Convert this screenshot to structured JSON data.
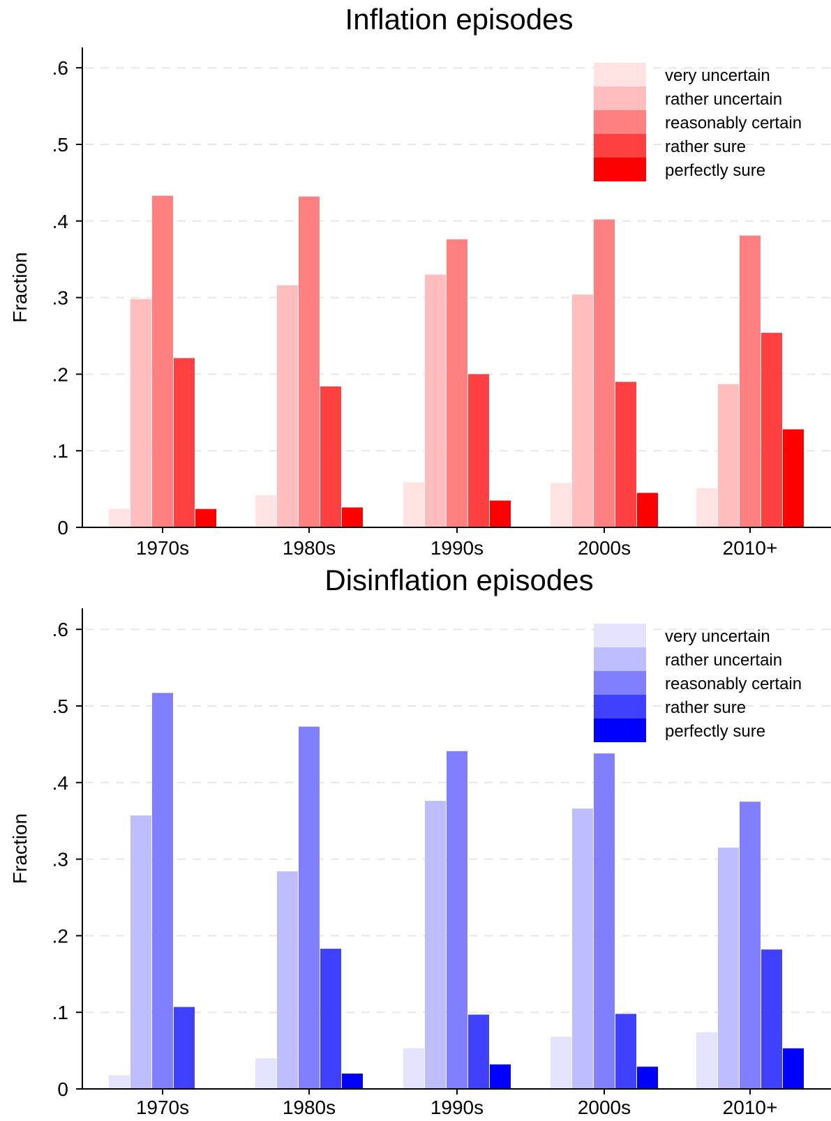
{
  "chart_data": [
    {
      "type": "bar",
      "title": "Inflation episodes",
      "ylabel": "Fraction",
      "xlabel": "",
      "categories": [
        "1970s",
        "1980s",
        "1990s",
        "2000s",
        "2010+"
      ],
      "ylim": [
        0,
        0.6
      ],
      "yticks": [
        0,
        0.1,
        0.2,
        0.3,
        0.4,
        0.5,
        0.6
      ],
      "ytick_labels": [
        "0",
        ".1",
        ".2",
        ".3",
        ".4",
        ".5",
        ".6"
      ],
      "grid": true,
      "legend_position": "top-right",
      "series": [
        {
          "name": "very uncertain",
          "color": "#FFE3E3",
          "values": [
            0.024,
            0.042,
            0.059,
            0.058,
            0.051
          ]
        },
        {
          "name": "rather uncertain",
          "color": "#FFBDBD",
          "values": [
            0.298,
            0.316,
            0.33,
            0.304,
            0.187
          ]
        },
        {
          "name": "reasonably certain",
          "color": "#FF8080",
          "values": [
            0.433,
            0.432,
            0.376,
            0.402,
            0.381
          ]
        },
        {
          "name": "rather sure",
          "color": "#FF4040",
          "values": [
            0.221,
            0.184,
            0.2,
            0.19,
            0.254
          ]
        },
        {
          "name": "perfectly sure",
          "color": "#FF0000",
          "values": [
            0.024,
            0.026,
            0.035,
            0.045,
            0.128
          ]
        }
      ]
    },
    {
      "type": "bar",
      "title": "Disinflation episodes",
      "ylabel": "Fraction",
      "xlabel": "",
      "categories": [
        "1970s",
        "1980s",
        "1990s",
        "2000s",
        "2010+"
      ],
      "ylim": [
        0,
        0.6
      ],
      "yticks": [
        0,
        0.1,
        0.2,
        0.3,
        0.4,
        0.5,
        0.6
      ],
      "ytick_labels": [
        "0",
        ".1",
        ".2",
        ".3",
        ".4",
        ".5",
        ".6"
      ],
      "grid": true,
      "legend_position": "top-right",
      "series": [
        {
          "name": "very uncertain",
          "color": "#E3E3FF",
          "values": [
            0.018,
            0.04,
            0.053,
            0.068,
            0.074
          ]
        },
        {
          "name": "rather uncertain",
          "color": "#BDBDFF",
          "values": [
            0.357,
            0.284,
            0.376,
            0.366,
            0.315
          ]
        },
        {
          "name": "reasonably certain",
          "color": "#8080FF",
          "values": [
            0.517,
            0.473,
            0.441,
            0.438,
            0.375
          ]
        },
        {
          "name": "rather sure",
          "color": "#4040FF",
          "values": [
            0.107,
            0.183,
            0.097,
            0.098,
            0.182
          ]
        },
        {
          "name": "perfectly sure",
          "color": "#0000FF",
          "values": [
            0.0,
            0.02,
            0.032,
            0.029,
            0.053
          ]
        }
      ]
    }
  ]
}
